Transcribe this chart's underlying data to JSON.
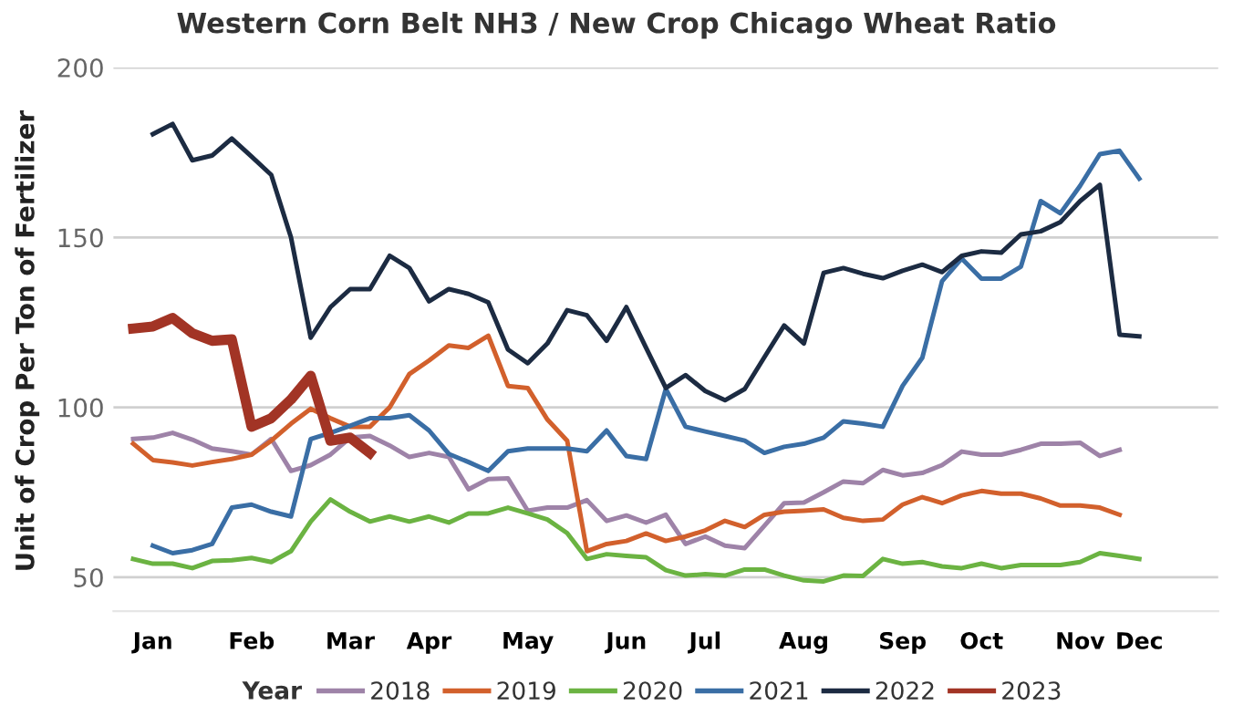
{
  "chart_data": {
    "type": "line",
    "title": "Western Corn Belt NH3 / New Crop Chicago Wheat Ratio",
    "ylabel": "Unit of Crop Per Ton of Fertilizer",
    "legend_title": "Year",
    "categories": [
      null,
      "Jan",
      null,
      null,
      null,
      null,
      "Feb",
      null,
      null,
      null,
      null,
      "Mar",
      null,
      null,
      null,
      "Apr",
      null,
      null,
      null,
      null,
      "May",
      null,
      null,
      null,
      null,
      "Jun",
      null,
      null,
      null,
      "Jul",
      null,
      null,
      null,
      null,
      "Aug",
      null,
      null,
      null,
      null,
      "Sep",
      null,
      null,
      null,
      "Oct",
      null,
      null,
      null,
      null,
      "Nov",
      null,
      null,
      "Dec"
    ],
    "ylim": [
      40,
      200
    ],
    "yticks": [
      50,
      100,
      150,
      200
    ],
    "grid": "y",
    "legend": "bottom",
    "marker": "none",
    "line_style": "solid",
    "series": [
      {
        "name": "2018",
        "color": "#9e83a8",
        "values": [
          90.7,
          91.1,
          92.5,
          90.5,
          87.9,
          87.1,
          86.1,
          90.7,
          81.3,
          83,
          86.1,
          91.1,
          91.6,
          88.8,
          85.4,
          86.6,
          85.4,
          75.9,
          78.9,
          79.1,
          69.6,
          70.5,
          70.5,
          72.7,
          66.6,
          68.2,
          66.1,
          68.4,
          59.8,
          62,
          59.3,
          58.6,
          65.2,
          71.8,
          72,
          75,
          78.2,
          77.7,
          81.6,
          80,
          80.7,
          83,
          87,
          86.1,
          86.1,
          87.5,
          89.3,
          89.3,
          89.6,
          85.7,
          87.5,
          null
        ]
      },
      {
        "name": "2019",
        "color": "#d2602c",
        "values": [
          89.3,
          84.5,
          83.8,
          82.9,
          83.9,
          84.8,
          86.1,
          90.2,
          95.2,
          99.6,
          96.8,
          94.3,
          94.3,
          100,
          109.8,
          113.8,
          118.2,
          117.5,
          121.1,
          106.3,
          105.7,
          96.4,
          90.2,
          57.7,
          59.8,
          60.7,
          62.9,
          60.7,
          62,
          63.8,
          66.6,
          64.8,
          68.4,
          69.3,
          69.6,
          70,
          67.5,
          66.6,
          67,
          71.4,
          73.6,
          71.8,
          74.1,
          75.4,
          74.6,
          74.6,
          73.2,
          71.1,
          71.1,
          70.5,
          68.4,
          null
        ]
      },
      {
        "name": "2020",
        "color": "#6bb342",
        "values": [
          55.4,
          54,
          54,
          52.7,
          54.8,
          55,
          55.7,
          54.5,
          57.7,
          66.4,
          72.9,
          69.3,
          66.4,
          67.9,
          66.4,
          67.9,
          66.1,
          68.8,
          68.8,
          70.5,
          68.8,
          67,
          63,
          55.4,
          56.8,
          56.3,
          55.9,
          52.1,
          50.5,
          50.9,
          50.5,
          52.3,
          52.3,
          50.5,
          49.1,
          48.8,
          50.5,
          50.4,
          55.4,
          54,
          54.5,
          53.2,
          52.7,
          54,
          52.7,
          53.6,
          53.6,
          53.6,
          54.5,
          57.1,
          56.3,
          55.4
        ]
      },
      {
        "name": "2021",
        "color": "#3a6ea5",
        "values": [
          null,
          59.3,
          57.1,
          58,
          59.8,
          70.5,
          71.4,
          69.3,
          67.9,
          90.7,
          92.5,
          94.6,
          96.8,
          96.8,
          97.7,
          93.2,
          86.3,
          83.9,
          81.3,
          87.1,
          87.9,
          87.9,
          87.9,
          87.1,
          93.2,
          85.7,
          84.8,
          105.4,
          94.3,
          92.9,
          91.6,
          90.2,
          86.6,
          88.4,
          89.3,
          91.1,
          95.9,
          95.2,
          94.3,
          106.3,
          114.6,
          137.1,
          143.8,
          137.9,
          137.9,
          141.4,
          160.7,
          157.1,
          165.2,
          174.5,
          175.5,
          167.3
        ]
      },
      {
        "name": "2022",
        "color": "#1c2b42",
        "values": [
          null,
          180.4,
          183.4,
          172.7,
          174.1,
          179.1,
          173.8,
          168.4,
          150,
          120.5,
          129.5,
          134.8,
          134.8,
          144.6,
          141,
          131.2,
          134.8,
          133.4,
          130.9,
          117,
          113,
          118.8,
          128.6,
          127.1,
          119.6,
          129.5,
          117.5,
          105.7,
          109.5,
          104.8,
          102.1,
          105.4,
          114.8,
          124.1,
          118.8,
          139.6,
          141,
          139.3,
          138,
          140.2,
          142,
          139.8,
          144.6,
          145.9,
          145.5,
          150.9,
          151.8,
          154.5,
          160.7,
          165.5,
          121.4,
          120.9
        ]
      },
      {
        "name": "2023",
        "color": "#a23425",
        "values": [
          123.2,
          123.8,
          126.3,
          121.8,
          119.6,
          120,
          94.3,
          96.8,
          102.3,
          109.3,
          90.2,
          91.1,
          86.6,
          null,
          null,
          null,
          null,
          null,
          null,
          null,
          null,
          null,
          null,
          null,
          null,
          null,
          null,
          null,
          null,
          null,
          null,
          null,
          null,
          null,
          null,
          null,
          null,
          null,
          null,
          null,
          null,
          null,
          null,
          null,
          null,
          null,
          null,
          null,
          null,
          null,
          null,
          null
        ]
      }
    ]
  }
}
